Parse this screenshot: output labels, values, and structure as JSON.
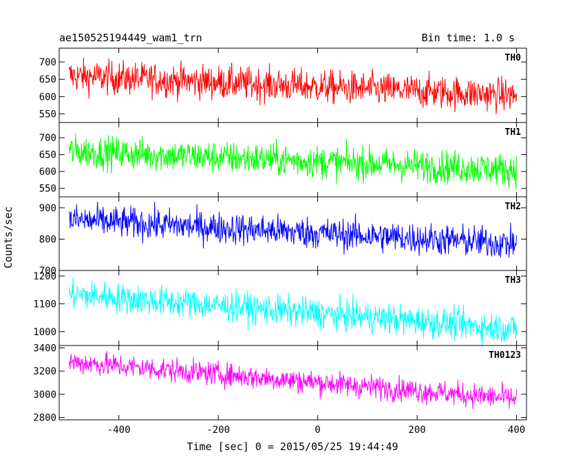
{
  "chart_data": {
    "type": "line",
    "title": "ae150525194449_wam1_trn",
    "subtitle": "Bin time: 1.0 s",
    "xlabel": "Time [sec] 0 = 2015/05/25 19:44:49",
    "ylabel": "Counts/sec",
    "xlim": [
      -520,
      420
    ],
    "x_ticks": [
      -400,
      -200,
      0,
      200,
      400
    ],
    "grid": false,
    "panels": [
      {
        "label": "TH0",
        "color": "#ff0000",
        "ylim": [
          525,
          740
        ],
        "y_ticks": [
          550,
          600,
          650,
          700
        ],
        "series": {
          "x_start": -500,
          "x_end": 400,
          "mean_start": 660,
          "mean_end": 603,
          "spread": 40
        }
      },
      {
        "label": "TH1",
        "color": "#00ff00",
        "ylim": [
          525,
          745
        ],
        "y_ticks": [
          550,
          600,
          650,
          700
        ],
        "series": {
          "x_start": -500,
          "x_end": 400,
          "mean_start": 660,
          "mean_end": 605,
          "spread": 40
        }
      },
      {
        "label": "TH2",
        "color": "#0000ff",
        "ylim": [
          700,
          935
        ],
        "y_ticks": [
          700,
          800,
          900
        ],
        "series": {
          "x_start": -500,
          "x_end": 400,
          "mean_start": 862,
          "mean_end": 785,
          "spread": 42
        }
      },
      {
        "label": "TH3",
        "color": "#00ffff",
        "ylim": [
          950,
          1220
        ],
        "y_ticks": [
          1000,
          1100,
          1200
        ],
        "series": {
          "x_start": -500,
          "x_end": 400,
          "mean_start": 1135,
          "mean_end": 1010,
          "spread": 45
        }
      },
      {
        "label": "TH0123",
        "color": "#ff00ff",
        "ylim": [
          2780,
          3420
        ],
        "y_ticks": [
          2800,
          3000,
          3200,
          3400
        ],
        "series": {
          "x_start": -500,
          "x_end": 400,
          "mean_start": 3280,
          "mean_end": 2960,
          "spread": 85
        }
      }
    ]
  }
}
